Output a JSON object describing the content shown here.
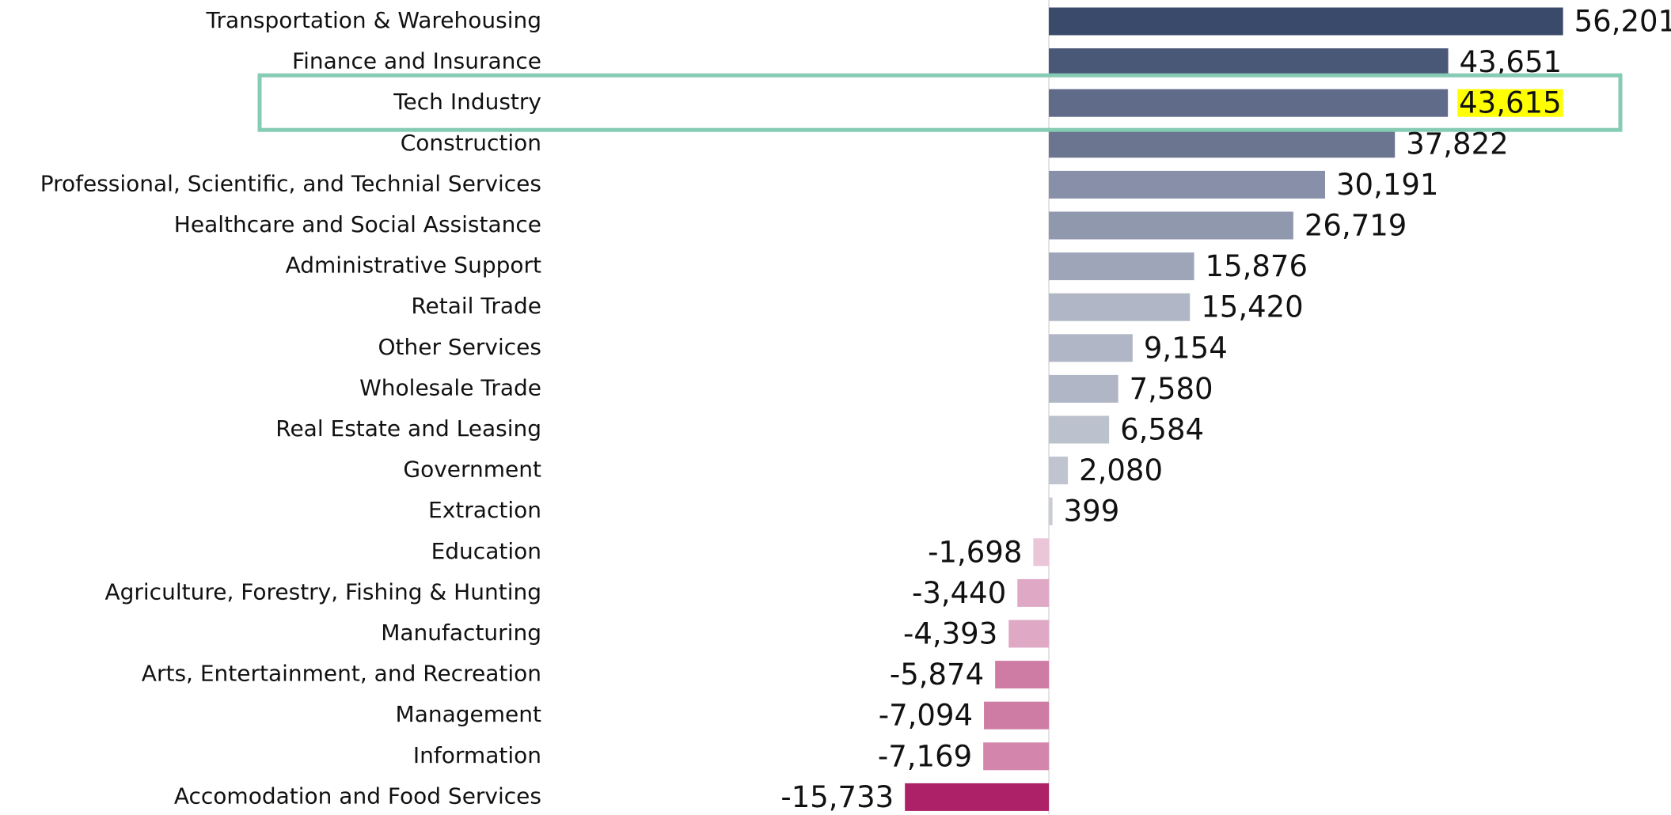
{
  "chart_data": {
    "type": "bar",
    "orientation": "horizontal",
    "categories": [
      "Transportation & Warehousing",
      "Finance and Insurance",
      "Tech Industry",
      "Construction",
      "Professional, Scientific, and Technial Services",
      "Healthcare and Social Assistance",
      "Administrative Support",
      "Retail Trade",
      "Other Services",
      "Wholesale Trade",
      "Real Estate and Leasing",
      "Government",
      "Extraction",
      "Education",
      "Agriculture, Forestry, Fishing & Hunting",
      "Manufacturing",
      "Arts, Entertainment, and Recreation",
      "Management",
      "Information",
      "Accomodation and Food Services"
    ],
    "values": [
      56201,
      43651,
      43615,
      37822,
      30191,
      26719,
      15876,
      15420,
      9154,
      7580,
      6584,
      2080,
      399,
      -1698,
      -3440,
      -4393,
      -5874,
      -7094,
      -7169,
      -15733
    ],
    "value_labels": [
      "56,201",
      "43,651",
      "43,615",
      "37,822",
      "30,191",
      "26,719",
      "15,876",
      "15,420",
      "9,154",
      "7,580",
      "6,584",
      "2,080",
      "399",
      "-1,698",
      "-3,440",
      "-4,393",
      "-5,874",
      "-7,094",
      "-7,169",
      "-15,733"
    ],
    "colors": [
      "#3a4a6b",
      "#4a5877",
      "#5f6b88",
      "#6b7590",
      "#8790a8",
      "#9098ad",
      "#9ea5b8",
      "#b0b6c6",
      "#b0b6c6",
      "#b0b6c6",
      "#bcc1ce",
      "#c0c4d0",
      "#c8ccd6",
      "#ebc6d8",
      "#dfa9c6",
      "#dfa9c6",
      "#cf7ca4",
      "#cf7ca4",
      "#d485ac",
      "#ad2168"
    ],
    "xlim": [
      -52000,
      68000
    ],
    "highlight": 2,
    "highlight_box_color": "#86cbb4",
    "highlight_label_color": "#ffff00"
  }
}
